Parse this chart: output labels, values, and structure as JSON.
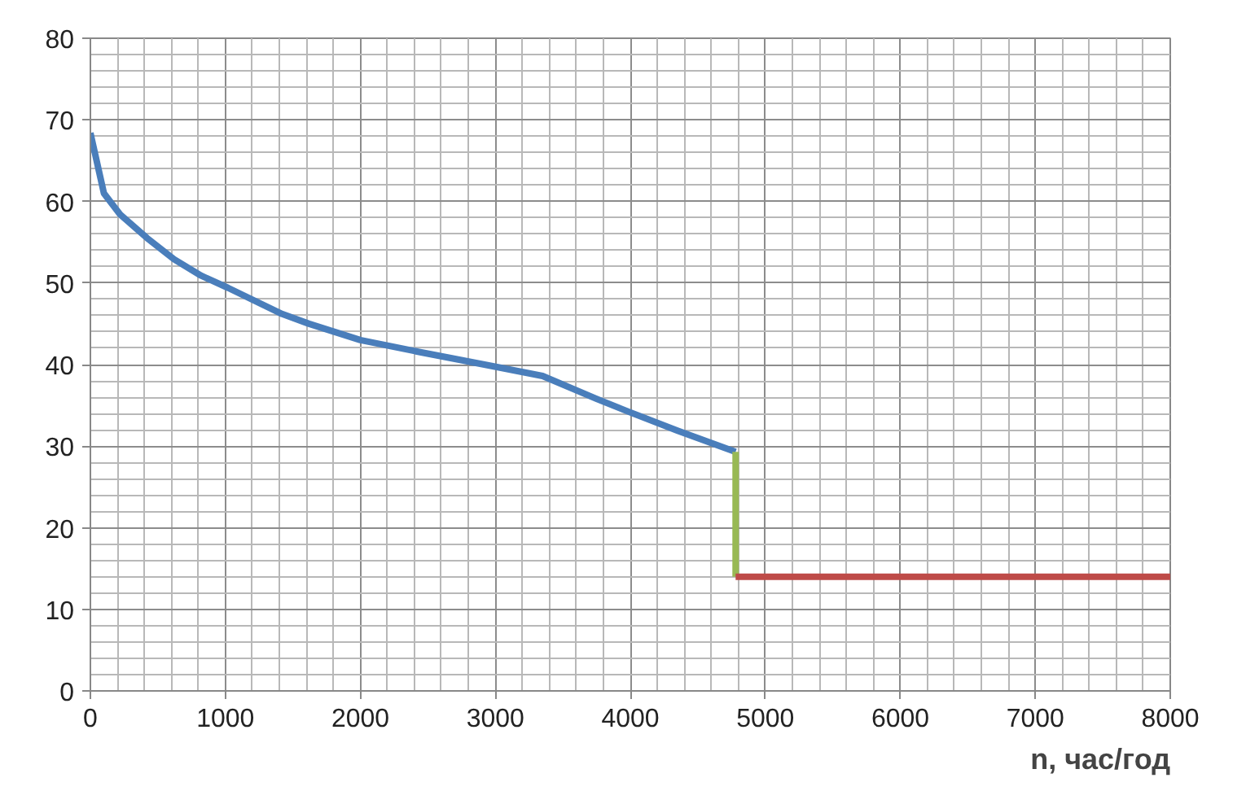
{
  "chart_data": {
    "type": "line",
    "xlabel": "n, час/год",
    "xlim": [
      0,
      8000
    ],
    "ylim": [
      0,
      80
    ],
    "xticks": [
      0,
      1000,
      2000,
      3000,
      4000,
      5000,
      6000,
      7000,
      8000
    ],
    "yticks": [
      0,
      10,
      20,
      30,
      40,
      50,
      60,
      70,
      80
    ],
    "grid": true,
    "marker": "none",
    "line_style": "solid",
    "series": [
      {
        "color": "#4a7ebb",
        "x": [
          0,
          100,
          220,
          420,
          620,
          820,
          1020,
          1420,
          1620,
          2000,
          2420,
          2950,
          3350,
          3750,
          3990,
          4350,
          4780
        ],
        "values": [
          68.4,
          61,
          58.4,
          55.5,
          52.9,
          50.9,
          49.4,
          46.2,
          45,
          43,
          41.6,
          39.9,
          38.6,
          35.8,
          34.2,
          31.9,
          29.3
        ]
      },
      {
        "color": "#98b954",
        "x": [
          4780,
          4780
        ],
        "values": [
          29.3,
          14
        ]
      },
      {
        "color": "#be4b48",
        "x": [
          4780,
          8000
        ],
        "values": [
          14,
          14
        ]
      }
    ]
  }
}
